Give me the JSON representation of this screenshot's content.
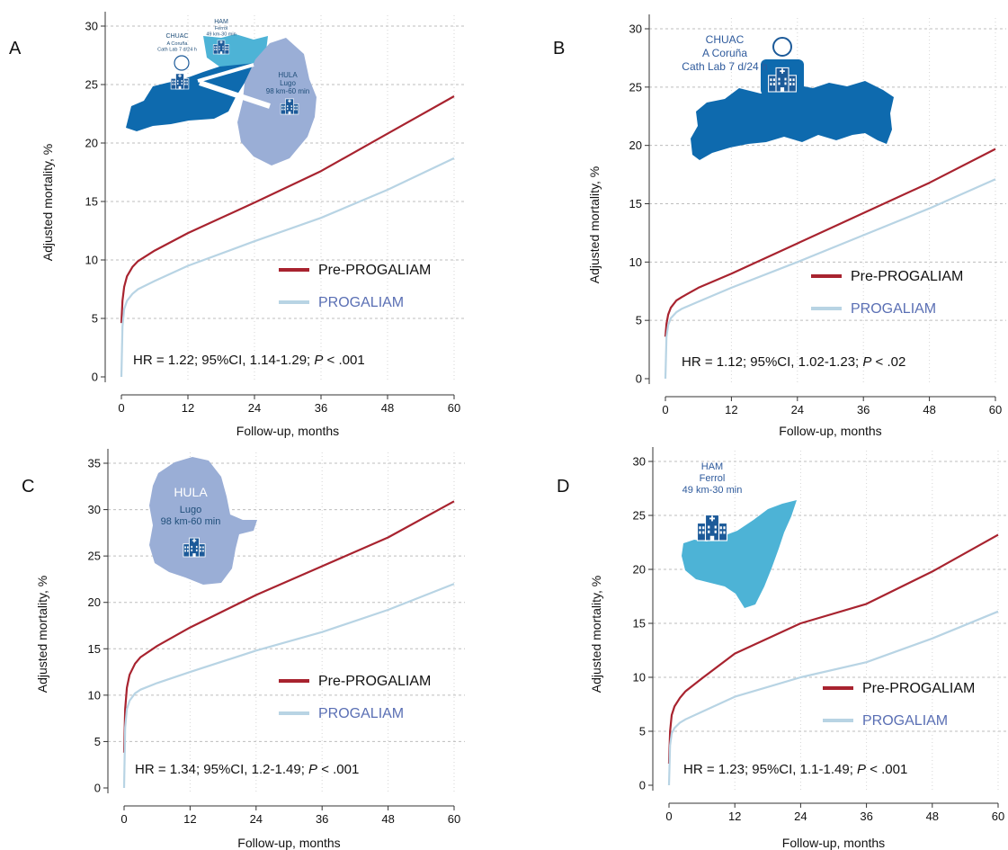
{
  "colors": {
    "pre": "#a8232f",
    "prog": "#b8d4e4",
    "prog_legend_text": "#5a6fb4",
    "grid": "#bdbdbd",
    "map_dark": "#0e6aae",
    "map_light": "#4db3d6",
    "map_pale": "#9aaed6",
    "building": "#1c5a99"
  },
  "chart_data": [
    {
      "panel": "A",
      "type": "line",
      "xlabel": "Follow-up, months",
      "ylabel": "Adjusted mortality, %",
      "xlim": [
        0,
        60
      ],
      "ylim": [
        0,
        30
      ],
      "xticks": [
        "0",
        "12",
        "24",
        "36",
        "48",
        "60"
      ],
      "yticks": [
        "0",
        "5",
        "10",
        "15",
        "20",
        "25",
        "30"
      ],
      "grid": "horizontal dashed",
      "legend_position": "right, middle",
      "series": [
        {
          "name": "Pre-PROGALIAM",
          "x": [
            0,
            0.2,
            0.5,
            1,
            2,
            3,
            6,
            12,
            24,
            36,
            48,
            60
          ],
          "y": [
            4.6,
            6.5,
            7.7,
            8.6,
            9.4,
            9.9,
            10.8,
            12.3,
            14.9,
            17.6,
            20.8,
            24.0
          ]
        },
        {
          "name": "PROGALIAM",
          "x": [
            0,
            0.2,
            0.5,
            1,
            2,
            3,
            6,
            12,
            24,
            36,
            48,
            60
          ],
          "y": [
            0,
            4.3,
            5.8,
            6.5,
            7.1,
            7.5,
            8.2,
            9.5,
            11.6,
            13.6,
            16.0,
            18.7
          ]
        }
      ],
      "annotation": {
        "prefix": "HR = 1.22; 95%CI, 1.14-1.29; ",
        "p": "P",
        "suffix": " < .001"
      },
      "map": {
        "hospitals": [
          {
            "name": "CHUAC",
            "city": "A Coruña",
            "detail": "Cath Lab 7 d/24 h"
          },
          {
            "name": "HAM",
            "city": "Ferrol",
            "detail": "49 km-30 min"
          },
          {
            "name": "HULA",
            "city": "Lugo",
            "detail": "98 km-60 min"
          }
        ]
      }
    },
    {
      "panel": "B",
      "type": "line",
      "xlabel": "Follow-up, months",
      "ylabel": "Adjusted mortality, %",
      "xlim": [
        0,
        60
      ],
      "ylim": [
        0,
        30
      ],
      "xticks": [
        "0",
        "12",
        "24",
        "36",
        "48",
        "60"
      ],
      "yticks": [
        "0",
        "5",
        "10",
        "15",
        "20",
        "25",
        "30"
      ],
      "grid": "horizontal dashed",
      "legend_position": "right, middle",
      "series": [
        {
          "name": "Pre-PROGALIAM",
          "x": [
            0,
            0.2,
            0.5,
            1,
            2,
            3,
            6,
            12,
            24,
            36,
            48,
            60
          ],
          "y": [
            3.6,
            4.7,
            5.5,
            6.1,
            6.7,
            7.0,
            7.8,
            9.0,
            11.6,
            14.2,
            16.8,
            19.7
          ]
        },
        {
          "name": "PROGALIAM",
          "x": [
            0,
            0.2,
            0.5,
            1,
            2,
            3,
            6,
            12,
            24,
            36,
            48,
            60
          ],
          "y": [
            0,
            3.6,
            4.6,
            5.2,
            5.7,
            6.0,
            6.6,
            7.8,
            10.0,
            12.3,
            14.6,
            17.1
          ]
        }
      ],
      "annotation": {
        "prefix": "HR = 1.12; 95%CI, 1.02-1.23; ",
        "p": "P",
        "suffix": " < .02"
      },
      "map": {
        "hospitals": [
          {
            "name": "CHUAC",
            "city": "A Coruña",
            "detail": "Cath Lab 7 d/24 h"
          }
        ]
      }
    },
    {
      "panel": "C",
      "type": "line",
      "xlabel": "Follow-up, months",
      "ylabel": "Adjusted mortality, %",
      "xlim": [
        0,
        60
      ],
      "ylim": [
        0,
        35
      ],
      "xticks": [
        "0",
        "12",
        "24",
        "36",
        "48",
        "60"
      ],
      "yticks": [
        "0",
        "5",
        "10",
        "15",
        "20",
        "25",
        "30",
        "35"
      ],
      "grid": "horizontal dashed",
      "legend_position": "right, middle",
      "series": [
        {
          "name": "Pre-PROGALIAM",
          "x": [
            0,
            0.2,
            0.5,
            1,
            2,
            3,
            6,
            12,
            24,
            36,
            48,
            60
          ],
          "y": [
            3.8,
            8.5,
            10.8,
            12.2,
            13.4,
            14.1,
            15.3,
            17.3,
            20.8,
            23.9,
            27.0,
            30.9
          ]
        },
        {
          "name": "PROGALIAM",
          "x": [
            0,
            0.2,
            0.5,
            1,
            2,
            3,
            6,
            12,
            24,
            36,
            48,
            60
          ],
          "y": [
            0,
            6.5,
            8.5,
            9.4,
            10.2,
            10.6,
            11.3,
            12.5,
            14.8,
            16.8,
            19.2,
            22.0
          ]
        }
      ],
      "annotation": {
        "prefix": "HR = 1.34; 95%CI, 1.2-1.49; ",
        "p": "P",
        "suffix": " < .001"
      },
      "map": {
        "hospitals": [
          {
            "name": "HULA",
            "city": "Lugo",
            "detail": "98 km-60 min"
          }
        ]
      }
    },
    {
      "panel": "D",
      "type": "line",
      "xlabel": "Follow-up, months",
      "ylabel": "Adjusted mortality, %",
      "xlim": [
        0,
        60
      ],
      "ylim": [
        0,
        30
      ],
      "xticks": [
        "0",
        "12",
        "24",
        "36",
        "48",
        "60"
      ],
      "yticks": [
        "0",
        "5",
        "10",
        "15",
        "20",
        "25",
        "30"
      ],
      "grid": "horizontal dashed",
      "legend_position": "right, middle",
      "series": [
        {
          "name": "Pre-PROGALIAM",
          "x": [
            0,
            0.2,
            0.5,
            1,
            2,
            3,
            6,
            12,
            24,
            36,
            48,
            60
          ],
          "y": [
            2.0,
            5.0,
            6.5,
            7.3,
            8.1,
            8.7,
            9.9,
            12.2,
            15.0,
            16.8,
            19.8,
            23.2
          ]
        },
        {
          "name": "PROGALIAM",
          "x": [
            0,
            0.2,
            0.5,
            1,
            2,
            3,
            6,
            12,
            24,
            36,
            48,
            60
          ],
          "y": [
            0,
            3.7,
            4.8,
            5.3,
            5.8,
            6.1,
            6.8,
            8.2,
            10.0,
            11.4,
            13.6,
            16.1
          ]
        }
      ],
      "annotation": {
        "prefix": "HR = 1.23; 95%CI, 1.1-1.49; ",
        "p": "P",
        "suffix": " < .001"
      },
      "map": {
        "hospitals": [
          {
            "name": "HAM",
            "city": "Ferrol",
            "detail": "49 km-30 min"
          }
        ]
      }
    }
  ]
}
